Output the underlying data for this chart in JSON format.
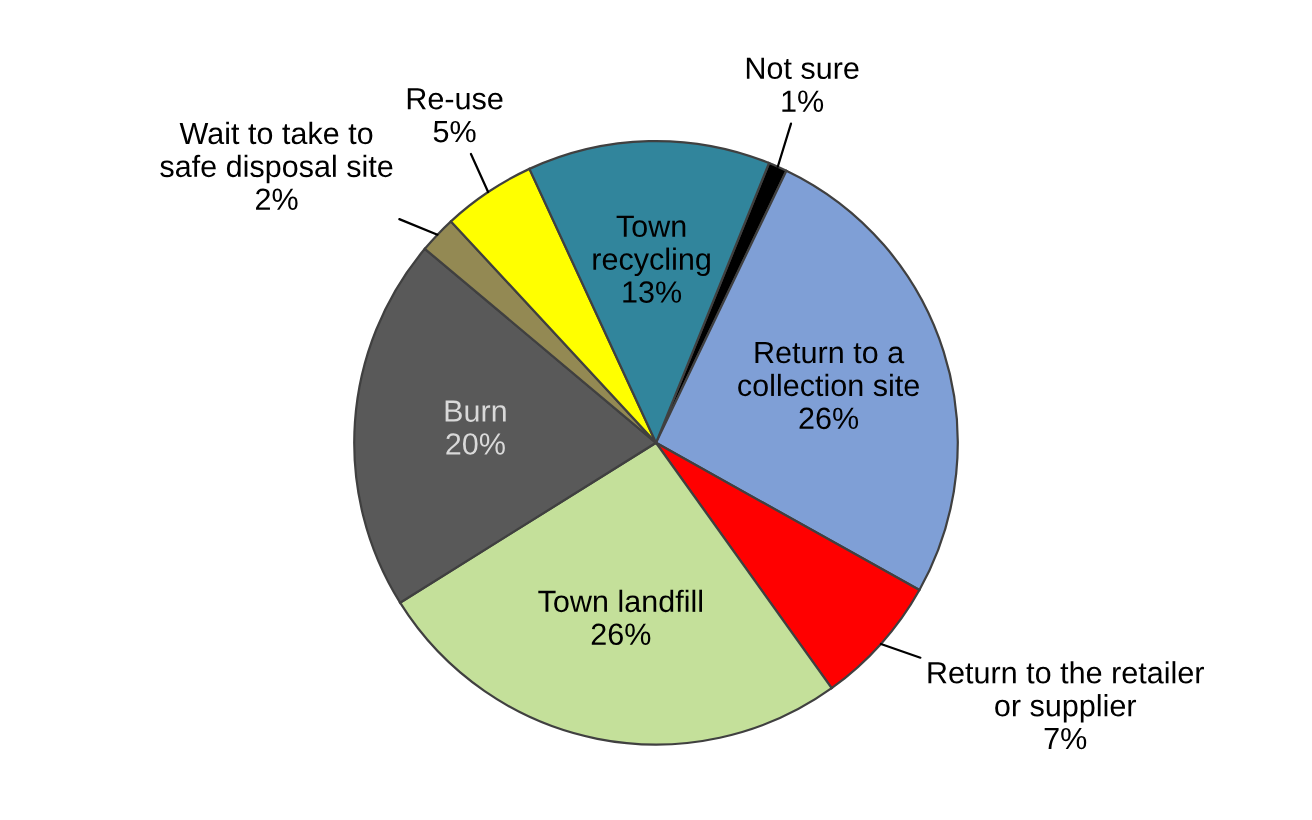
{
  "chart_data": {
    "type": "pie",
    "categories": [
      "Not sure",
      "Return to a collection site",
      "Return to the retailer or supplier",
      "Town landfill",
      "Burn",
      "Wait to take to safe disposal site",
      "Re-use",
      "Town recycling"
    ],
    "values": [
      1,
      26,
      7,
      26,
      20,
      2,
      5,
      13
    ],
    "colors": [
      "#000000",
      "#7f9fd6",
      "#ff0000",
      "#c4e09a",
      "#595959",
      "#938953",
      "#ffff00",
      "#31859c"
    ],
    "value_labels": [
      "1%",
      "26%",
      "7%",
      "26%",
      "20%",
      "2%",
      "5%",
      "13%"
    ]
  }
}
